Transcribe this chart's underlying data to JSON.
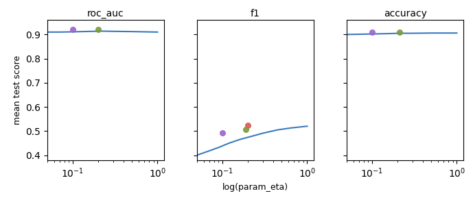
{
  "metrics": [
    "roc_auc",
    "f1",
    "accuracy"
  ],
  "xlabel": "log(param_eta)",
  "ylabel": "mean test score",
  "roc_auc": {
    "curve_x": [
      0.05,
      0.07,
      0.1,
      0.13,
      0.17,
      0.22,
      0.3,
      0.5,
      0.7,
      1.0
    ],
    "curve_y": [
      0.91,
      0.91,
      0.911,
      0.912,
      0.913,
      0.914,
      0.913,
      0.912,
      0.911,
      0.91
    ],
    "points_x": [
      0.1,
      0.2
    ],
    "points_y": [
      0.921,
      0.921
    ],
    "points_colors": [
      "#9966cc",
      "#7a9b3a"
    ],
    "ylim": [
      0.38,
      0.96
    ]
  },
  "f1": {
    "curve_x": [
      0.05,
      0.07,
      0.09,
      0.12,
      0.16,
      0.22,
      0.3,
      0.45,
      0.65,
      1.0
    ],
    "curve_y": [
      0.4,
      0.418,
      0.432,
      0.45,
      0.465,
      0.478,
      0.491,
      0.505,
      0.513,
      0.52
    ],
    "points_x": [
      0.1,
      0.2,
      0.19
    ],
    "points_y": [
      0.492,
      0.524,
      0.507
    ],
    "points_colors": [
      "#9966cc",
      "#e05555",
      "#7a9b3a"
    ],
    "ylim": [
      0.38,
      0.96
    ]
  },
  "accuracy": {
    "curve_x": [
      0.05,
      0.07,
      0.1,
      0.13,
      0.17,
      0.22,
      0.3,
      0.5,
      0.7,
      1.0
    ],
    "curve_y": [
      0.9,
      0.901,
      0.902,
      0.903,
      0.904,
      0.905,
      0.905,
      0.906,
      0.906,
      0.906
    ],
    "points_x": [
      0.1,
      0.21
    ],
    "points_y": [
      0.909,
      0.91
    ],
    "points_colors": [
      "#9966cc",
      "#7a9b3a"
    ],
    "ylim": [
      0.38,
      0.96
    ]
  },
  "curve_color": "#3a7abf",
  "xlim": [
    0.05,
    1.2
  ],
  "yticks": [
    0.4,
    0.5,
    0.6,
    0.7,
    0.8,
    0.9
  ]
}
